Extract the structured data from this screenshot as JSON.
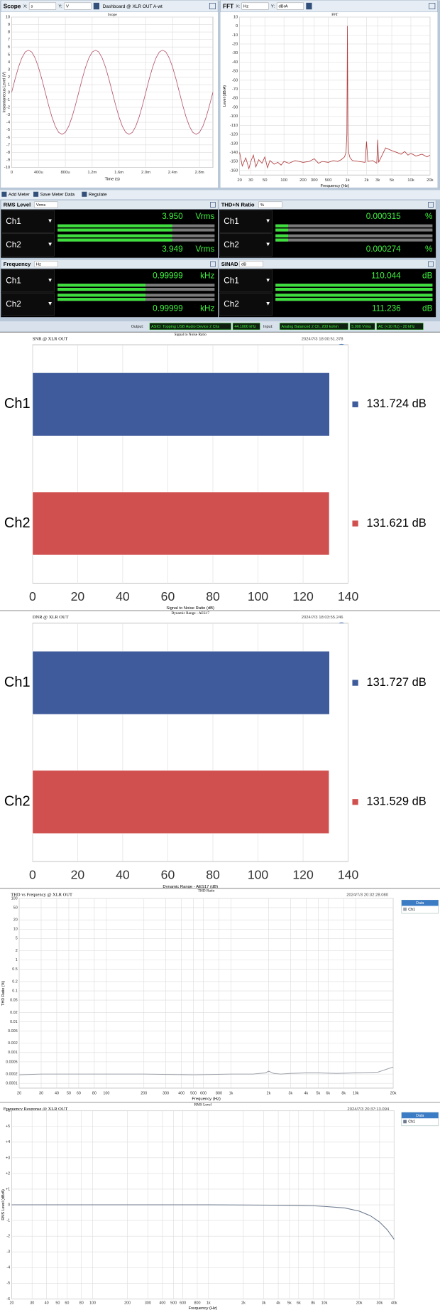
{
  "scope_toolbar": {
    "title": "Scope",
    "x_prefix": "X:",
    "x_unit": "s",
    "y_prefix": "Y:",
    "y_unit": "V",
    "name": "Dashboard @ XLR OUT A-wt"
  },
  "fft_toolbar": {
    "title": "FFT",
    "x_prefix": "X:",
    "x_unit": "Hz",
    "y_prefix": "Y:",
    "y_unit": "dBrA"
  },
  "meter_toolbar": [
    "Add Meter",
    "Save Meter Data",
    "Regulate"
  ],
  "meters": [
    {
      "title": "RMS Level",
      "unit": "Vrms",
      "channels": [
        "Ch1",
        "Ch2"
      ],
      "readings": [
        "3.950",
        "3.949"
      ],
      "reading_unit": "Vrms"
    },
    {
      "title": "THD+N Ratio",
      "unit": "%",
      "channels": [
        "Ch1",
        "Ch2"
      ],
      "readings": [
        "0.000315",
        "0.000274"
      ],
      "reading_unit": "%"
    },
    {
      "title": "Frequency",
      "unit": "Hz",
      "channels": [
        "Ch1",
        "Ch2"
      ],
      "readings": [
        "0.99999",
        "0.99999"
      ],
      "reading_unit": "kHz"
    },
    {
      "title": "SINAD",
      "unit": "dB",
      "channels": [
        "Ch1",
        "Ch2"
      ],
      "readings": [
        "110.044",
        "111.236"
      ],
      "reading_unit": "dB"
    }
  ],
  "status": {
    "output_label": "Output:",
    "output": "ASIO: Topping USB Audio Device 2 Chs",
    "rate": "44.1000 kHz",
    "input_label": "Input:",
    "input": "Analog Balanced 2 Ch, 200 kohm",
    "range": "5.000 Vrms",
    "filter": "AC (<10 Hz) - 20 kHz"
  },
  "chart_data": [
    {
      "type": "line",
      "title": "Scope",
      "xlabel": "Time (s)",
      "ylabel": "Instantaneous Level (V)",
      "x": [
        0,
        5e-05,
        0.0001,
        0.00015,
        0.0002,
        0.00025,
        0.0003,
        0.00035,
        0.0004,
        0.00045,
        0.0005,
        0.00055,
        0.0006,
        0.00065,
        0.0007,
        0.00075,
        0.0008,
        0.00085,
        0.0009,
        0.00095,
        0.001,
        0.00105,
        0.0011,
        0.00115,
        0.0012,
        0.00125,
        0.0013,
        0.00135,
        0.0014,
        0.00145,
        0.0015,
        0.00155,
        0.0016,
        0.00165,
        0.0017,
        0.00175,
        0.0018,
        0.00185,
        0.0019,
        0.00195,
        0.002,
        0.00205,
        0.0021,
        0.00215,
        0.0022,
        0.00225,
        0.0023,
        0.00235,
        0.0024,
        0.00245,
        0.0025,
        0.00255,
        0.0026,
        0.00265,
        0.0027,
        0.00275,
        0.0028,
        0.00285,
        0.0029,
        0.00295,
        0.003
      ],
      "series": [
        {
          "color": "#b4536a",
          "values": [
            0,
            1.73,
            3.29,
            4.53,
            5.33,
            5.6,
            5.33,
            4.53,
            3.29,
            1.73,
            0,
            -1.73,
            -3.29,
            -4.53,
            -5.33,
            -5.6,
            -5.33,
            -4.53,
            -3.29,
            -1.73,
            0,
            1.73,
            3.29,
            4.53,
            5.33,
            5.6,
            5.33,
            4.53,
            3.29,
            1.73,
            0,
            -1.73,
            -3.29,
            -4.53,
            -5.33,
            -5.6,
            -5.33,
            -4.53,
            -3.29,
            -1.73,
            0,
            1.73,
            3.29,
            4.53,
            5.33,
            5.6,
            5.33,
            4.53,
            3.29,
            1.73,
            0,
            -1.73,
            -3.29,
            -4.53,
            -5.33,
            -5.6,
            -5.33,
            -4.53,
            -3.29,
            -1.73,
            0
          ]
        }
      ],
      "xlim": [
        0,
        0.003
      ],
      "xticks": [
        0,
        {
          "value": 0.0004,
          "label": "400u"
        },
        {
          "value": 0.0008,
          "label": "800u"
        },
        {
          "value": 0.0012,
          "label": "1.2m"
        },
        {
          "value": 0.0016,
          "label": "1.6m"
        },
        {
          "value": 0.002,
          "label": "2.0m"
        },
        {
          "value": 0.0024,
          "label": "2.4m"
        },
        {
          "value": 0.0028,
          "label": "2.8m"
        }
      ],
      "ylim": [
        -10,
        10
      ],
      "yticks": [
        10,
        9,
        8,
        7,
        6,
        5,
        4,
        3,
        2,
        1,
        0,
        -1,
        -2,
        -3,
        -4,
        -5,
        -6,
        -7,
        -8,
        -9,
        -10
      ],
      "grid": true
    },
    {
      "type": "line",
      "title": "FFT",
      "xlabel": "Frequency (Hz)",
      "ylabel": "Level (dBrA)",
      "log_x": true,
      "x": [
        20,
        22,
        25,
        28,
        30,
        33,
        36,
        40,
        45,
        50,
        55,
        60,
        70,
        80,
        90,
        100,
        120,
        150,
        200,
        250,
        300,
        350,
        400,
        500,
        600,
        700,
        800,
        900,
        950,
        980,
        1000,
        1020,
        1050,
        1100,
        1200,
        1500,
        1900,
        2000,
        2100,
        2500,
        2900,
        3000,
        3100,
        4000,
        5000,
        6000,
        7000,
        8000,
        9000,
        10000,
        12000,
        15000,
        18000,
        20000
      ],
      "series": [
        {
          "color": "#b23a3a",
          "values": [
            -140,
            -155,
            -146,
            -158,
            -150,
            -143,
            -156,
            -148,
            -152,
            -145,
            -157,
            -149,
            -153,
            -151,
            -154,
            -150,
            -152,
            -149,
            -151,
            -150,
            -147,
            -152,
            -150,
            -151,
            -149,
            -150,
            -148,
            -145,
            -140,
            -120,
            0,
            -122,
            -141,
            -146,
            -149,
            -150,
            -151,
            -128,
            -150,
            -149,
            -152,
            -126,
            -151,
            -135,
            -138,
            -140,
            -142,
            -139,
            -143,
            -141,
            -144,
            -142,
            -145,
            -143
          ]
        }
      ],
      "xlim": [
        20,
        20000
      ],
      "xticks": [
        20,
        30,
        50,
        100,
        200,
        300,
        500,
        {
          "value": 1000,
          "label": "1k"
        },
        {
          "value": 2000,
          "label": "2k"
        },
        {
          "value": 3000,
          "label": "3k"
        },
        {
          "value": 5000,
          "label": "5k"
        },
        {
          "value": 10000,
          "label": "10k"
        },
        {
          "value": 20000,
          "label": "20k"
        }
      ],
      "ylim": [
        -165,
        10
      ],
      "yticks": [
        10,
        0,
        -10,
        -20,
        -30,
        -40,
        -50,
        -60,
        -70,
        -80,
        -90,
        -100,
        -110,
        -120,
        -130,
        -140,
        -150,
        -160
      ],
      "grid": true
    },
    {
      "type": "bar",
      "orientation": "horizontal",
      "title": "Signal to Noise Ratio",
      "subtitle": "SNR @ XLR OUT",
      "timestamp": "2024/7/3 18:00:51.378",
      "categories": [
        "Ch1",
        "Ch2"
      ],
      "values": [
        131.724,
        131.621
      ],
      "value_labels": [
        "131.724 dB",
        "131.621 dB"
      ],
      "colors": [
        "#3f5b9b",
        "#d0504f"
      ],
      "xlabel": "Signal to Noise Ratio (dB)",
      "xlim": [
        0,
        140
      ],
      "xticks": [
        0,
        20,
        40,
        60,
        80,
        100,
        120,
        140
      ],
      "grid": true
    },
    {
      "type": "bar",
      "orientation": "horizontal",
      "title": "Dynamic Range - AES17",
      "subtitle": "DNR @ XLR OUT",
      "timestamp": "2024/7/3 18:03:55.246",
      "categories": [
        "Ch1",
        "Ch2"
      ],
      "values": [
        131.727,
        131.529
      ],
      "value_labels": [
        "131.727 dB",
        "131.529 dB"
      ],
      "colors": [
        "#3f5b9b",
        "#d0504f"
      ],
      "xlabel": "Dynamic Range - AES17 (dB)",
      "xlim": [
        0,
        140
      ],
      "xticks": [
        0,
        20,
        40,
        60,
        80,
        100,
        120,
        140
      ],
      "grid": true
    },
    {
      "type": "line",
      "title": "THD Ratio",
      "subtitle": "THD vs Frequency @ XLR OUT",
      "timestamp": "2024/7/3 20:32:28.080",
      "xlabel": "Frequency (Hz)",
      "ylabel": "THD Ratio (%)",
      "log_x": true,
      "log_y": true,
      "legend": "outside-right",
      "legend_title": "Data",
      "x": [
        20,
        30,
        50,
        100,
        200,
        500,
        1000,
        1500,
        1900,
        2000,
        2200,
        2500,
        3000,
        4000,
        5000,
        7000,
        10000,
        15000,
        20000
      ],
      "series": [
        {
          "name": "Ch1",
          "color": "#9ea3ab",
          "values": [
            0.00019,
            0.0002,
            0.0002,
            0.0002,
            0.0002,
            0.00019,
            0.0002,
            0.0002,
            0.00022,
            0.00025,
            0.00021,
            0.0002,
            0.00021,
            0.00022,
            0.00022,
            0.00021,
            0.00022,
            0.00023,
            0.00034
          ]
        }
      ],
      "xlim": [
        20,
        20000
      ],
      "xticks": [
        20,
        30,
        40,
        50,
        60,
        80,
        100,
        200,
        300,
        400,
        500,
        600,
        800,
        {
          "value": 1000,
          "label": "1k"
        },
        {
          "value": 2000,
          "label": "2k"
        },
        {
          "value": 3000,
          "label": "3k"
        },
        {
          "value": 4000,
          "label": "4k"
        },
        {
          "value": 5000,
          "label": "5k"
        },
        {
          "value": 6000,
          "label": "6k"
        },
        {
          "value": 8000,
          "label": "8k"
        },
        {
          "value": 10000,
          "label": "10k"
        },
        {
          "value": 20000,
          "label": "20k"
        }
      ],
      "ylim": [
        7e-05,
        100
      ],
      "yticks": [
        100,
        50,
        20,
        10,
        5,
        2,
        1,
        0.5,
        0.2,
        0.1,
        0.05,
        0.02,
        0.01,
        0.005,
        0.002,
        0.001,
        0.0005,
        0.0002,
        0.0001
      ],
      "grid": true
    },
    {
      "type": "line",
      "title": "RMS Level",
      "subtitle": "Frequency Response @ XLR OUT",
      "timestamp": "2024/7/3 20:37:13.094",
      "xlabel": "Frequency (Hz)",
      "ylabel": "RMS Level (dBrA)",
      "log_x": true,
      "legend": "outside-right",
      "legend_title": "Data",
      "x": [
        20,
        50,
        100,
        200,
        500,
        1000,
        2000,
        5000,
        8000,
        10000,
        15000,
        20000,
        25000,
        30000,
        35000,
        40000
      ],
      "series": [
        {
          "name": "Ch1",
          "color": "#6c7a8e",
          "values": [
            0,
            0,
            0,
            0,
            0,
            0,
            -0.01,
            -0.03,
            -0.06,
            -0.1,
            -0.2,
            -0.4,
            -0.7,
            -1.1,
            -1.6,
            -2.2
          ]
        }
      ],
      "xlim": [
        20,
        40000
      ],
      "xticks": [
        20,
        30,
        40,
        50,
        60,
        80,
        100,
        200,
        300,
        400,
        500,
        600,
        800,
        {
          "value": 1000,
          "label": "1k"
        },
        {
          "value": 2000,
          "label": "2k"
        },
        {
          "value": 3000,
          "label": "3k"
        },
        {
          "value": 4000,
          "label": "4k"
        },
        {
          "value": 5000,
          "label": "5k"
        },
        {
          "value": 6000,
          "label": "6k"
        },
        {
          "value": 8000,
          "label": "8k"
        },
        {
          "value": 10000,
          "label": "10k"
        },
        {
          "value": 20000,
          "label": "20k"
        },
        {
          "value": 30000,
          "label": "30k"
        },
        {
          "value": 40000,
          "label": "40k"
        }
      ],
      "ylim": [
        -6,
        6
      ],
      "yticks": [
        {
          "value": 6,
          "label": "+6"
        },
        {
          "value": 5,
          "label": "+5"
        },
        {
          "value": 4,
          "label": "+4"
        },
        {
          "value": 3,
          "label": "+3"
        },
        {
          "value": 2,
          "label": "+2"
        },
        {
          "value": 1,
          "label": "+1"
        },
        0,
        -1,
        -2,
        -3,
        -4,
        -5,
        -6
      ],
      "grid": true
    }
  ]
}
